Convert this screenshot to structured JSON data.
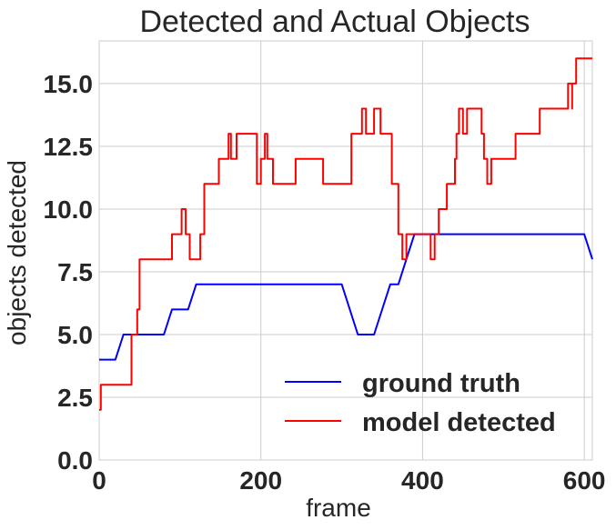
{
  "chart_data": {
    "type": "line",
    "title": "Detected and Actual Objects",
    "xlabel": "frame",
    "ylabel": "objects detected",
    "xlim": [
      0,
      610
    ],
    "ylim": [
      0,
      16.7
    ],
    "xticks": [
      0,
      200,
      400,
      600
    ],
    "xtick_labels": [
      "0",
      "200",
      "400",
      "600"
    ],
    "yticks": [
      0,
      2.5,
      5,
      7.5,
      10,
      12.5,
      15
    ],
    "ytick_labels": [
      "0.0",
      "2.5",
      "5.0",
      "7.5",
      "10.0",
      "12.5",
      "15.0"
    ],
    "grid": true,
    "legend": "lower-right",
    "series": [
      {
        "name": "ground truth",
        "color": "#0000ff",
        "step": false,
        "x": [
          0,
          20,
          30,
          80,
          90,
          110,
          120,
          300,
          320,
          340,
          360,
          370,
          380,
          390,
          400,
          600,
          610
        ],
        "y": [
          4,
          4,
          5,
          5,
          6,
          6,
          7,
          7,
          5,
          5,
          7,
          7,
          8,
          9,
          9,
          9,
          8
        ]
      },
      {
        "name": "model detected",
        "color": "#ff0000",
        "step": true,
        "x": [
          0,
          2,
          35,
          40,
          45,
          47,
          50,
          90,
          102,
          107,
          112,
          125,
          130,
          148,
          160,
          163,
          170,
          175,
          195,
          200,
          205,
          208,
          215,
          240,
          243,
          263,
          277,
          305,
          312,
          325,
          330,
          340,
          348,
          362,
          370,
          375,
          380,
          390,
          410,
          415,
          420,
          430,
          440,
          442,
          445,
          450,
          455,
          470,
          473,
          476,
          480,
          485,
          490,
          495,
          515,
          530,
          545,
          560,
          580,
          585,
          585,
          590,
          610
        ],
        "y": [
          2,
          3,
          3,
          5,
          5,
          6,
          8,
          9,
          10,
          9,
          8,
          9,
          11,
          12,
          13,
          12,
          13,
          13,
          11,
          12,
          13,
          12,
          11,
          11,
          12,
          12,
          11,
          11,
          13,
          14,
          13,
          14,
          13,
          11,
          9,
          8,
          9,
          9,
          8,
          9,
          10,
          11,
          12,
          13,
          14,
          13,
          14,
          14,
          13,
          12,
          11,
          12,
          12,
          12,
          13,
          13,
          14,
          14,
          15,
          14,
          15,
          16,
          16
        ]
      }
    ]
  }
}
